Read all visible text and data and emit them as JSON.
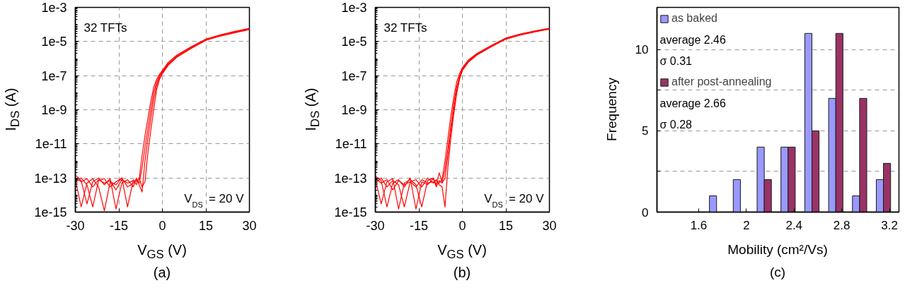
{
  "chart_data": [
    {
      "type": "line",
      "xlabel": "V$_{GS}$ (V)",
      "ylabel": "I$_{DS}$ (A)",
      "log": "y",
      "xlim": [
        -30,
        30
      ],
      "ylim": [
        1e-15,
        0.001
      ],
      "xticks": [
        -30,
        -15,
        0,
        15,
        30
      ],
      "yticks": [
        {
          "value": 1e-15,
          "label": "1e-15"
        },
        {
          "value": 1e-13,
          "label": "1e-13"
        },
        {
          "value": 1e-11,
          "label": "1e-11"
        },
        {
          "value": 1e-09,
          "label": "1e-9"
        },
        {
          "value": 1e-07,
          "label": "1e-7"
        },
        {
          "value": 1e-05,
          "label": "1e-5"
        },
        {
          "value": 0.001,
          "label": "1e-3"
        }
      ],
      "grid": true,
      "line_style": "solid",
      "marker": "none",
      "annotations": [
        "32 TFTs",
        "V$_{DS}$ = 20 V",
        "(a)"
      ],
      "x": [
        -30,
        -28,
        -26,
        -24,
        -22,
        -20,
        -18,
        -16,
        -14,
        -12,
        -10,
        -9,
        -8,
        -7,
        -6,
        -5,
        -4,
        -3,
        -2,
        -1,
        0,
        2,
        5,
        10,
        15,
        20,
        25,
        30
      ],
      "series": [
        {
          "color": "#ff0000",
          "values": [
            1e-13,
            6e-14,
            9e-14,
            3e-14,
            8e-14,
            5e-14,
            7e-14,
            2e-14,
            8e-14,
            5e-14,
            7e-14,
            6e-14,
            9e-14,
            2e-12,
            3e-11,
            3e-10,
            3e-09,
            2e-08,
            6e-08,
            1.2e-07,
            2e-07,
            6e-07,
            1.6e-06,
            5e-06,
            1.4e-05,
            2.5e-05,
            4e-05,
            6e-05
          ]
        },
        {
          "color": "#ff0000",
          "values": [
            8e-14,
            2e-15,
            5e-14,
            9e-14,
            3e-14,
            1.2e-15,
            6e-14,
            4e-14,
            1e-13,
            3e-14,
            5e-14,
            8e-14,
            5e-14,
            4e-13,
            6e-12,
            8e-11,
            1e-09,
            1e-08,
            4e-08,
            1e-07,
            1.7e-07,
            5e-07,
            1.4e-06,
            4.5e-06,
            1.3e-05,
            2.3e-05,
            3.7e-05,
            5.5e-05
          ]
        },
        {
          "color": "#ff0000",
          "values": [
            1.5e-13,
            7e-14,
            3e-15,
            6e-14,
            1e-13,
            4e-14,
            9e-14,
            1.5e-15,
            5e-14,
            8e-14,
            3e-14,
            1e-13,
            4e-14,
            1.5e-14,
            1e-12,
            2e-11,
            3e-10,
            4e-09,
            2.5e-08,
            8e-08,
            1.5e-07,
            4.5e-07,
            1.3e-06,
            4.2e-06,
            1.2e-05,
            2.2e-05,
            3.5e-05,
            5.2e-05
          ]
        },
        {
          "color": "#ff0000",
          "values": [
            6e-14,
            1e-13,
            4e-14,
            2e-15,
            7e-14,
            9e-14,
            3e-14,
            6e-14,
            1e-13,
            2e-15,
            8e-14,
            4e-14,
            1e-13,
            3e-14,
            6e-14,
            3e-12,
            6e-11,
            1e-09,
            1.5e-08,
            6e-08,
            1.3e-07,
            4e-07,
            1.2e-06,
            4e-06,
            1.2e-05,
            2.1e-05,
            3.3e-05,
            5e-05
          ]
        }
      ]
    },
    {
      "type": "line",
      "xlabel": "V$_{GS}$ (V)",
      "ylabel": "I$_{DS}$ (A)",
      "log": "y",
      "xlim": [
        -30,
        30
      ],
      "ylim": [
        1e-15,
        0.001
      ],
      "xticks": [
        -30,
        -15,
        0,
        15,
        30
      ],
      "yticks": [
        {
          "value": 1e-15,
          "label": "1e-15"
        },
        {
          "value": 1e-13,
          "label": "1e-13"
        },
        {
          "value": 1e-11,
          "label": "1e-11"
        },
        {
          "value": 1e-09,
          "label": "1e-9"
        },
        {
          "value": 1e-07,
          "label": "1e-7"
        },
        {
          "value": 1e-05,
          "label": "1e-5"
        },
        {
          "value": 0.001,
          "label": "1e-3"
        }
      ],
      "grid": true,
      "line_style": "solid",
      "marker": "none",
      "annotations": [
        "32 TFTs",
        "V$_{DS}$ = 20 V",
        "(b)"
      ],
      "x": [
        -30,
        -28,
        -26,
        -24,
        -22,
        -20,
        -18,
        -16,
        -14,
        -12,
        -10,
        -9,
        -8,
        -7,
        -6,
        -5,
        -4,
        -3,
        -2,
        -1,
        0,
        2,
        5,
        10,
        15,
        20,
        25,
        30
      ],
      "series": [
        {
          "color": "#ff0000",
          "values": [
            1e-13,
            5e-14,
            8e-14,
            2e-14,
            7e-14,
            4e-14,
            6e-14,
            3e-14,
            8e-14,
            5e-14,
            6e-14,
            7e-14,
            5e-14,
            8e-14,
            1e-12,
            2e-11,
            4e-10,
            5e-09,
            4e-08,
            1.3e-07,
            3e-07,
            8e-07,
            2e-06,
            6e-06,
            1.6e-05,
            2.8e-05,
            4.2e-05,
            6e-05
          ]
        },
        {
          "color": "#ff0000",
          "values": [
            8e-14,
            3e-15,
            6e-14,
            9e-14,
            1.5e-15,
            5e-14,
            8e-14,
            4e-14,
            2e-15,
            7e-14,
            1e-13,
            4e-14,
            2e-13,
            6e-14,
            3e-13,
            5e-12,
            1e-10,
            2e-09,
            2e-08,
            9e-08,
            2.5e-07,
            7e-07,
            1.8e-06,
            5.5e-06,
            1.5e-05,
            2.6e-05,
            4e-05,
            5.7e-05
          ]
        },
        {
          "color": "#ff0000",
          "values": [
            1.3e-13,
            7e-14,
            2e-15,
            5e-14,
            8e-14,
            3e-14,
            1e-13,
            1.5e-15,
            6e-14,
            4e-14,
            9e-14,
            3e-14,
            7e-14,
            5e-14,
            1e-13,
            2e-12,
            5e-11,
            1e-09,
            1.2e-08,
            7e-08,
            2.2e-07,
            6.5e-07,
            1.7e-06,
            5.2e-06,
            1.4e-05,
            2.5e-05,
            3.8e-05,
            5.5e-05
          ]
        },
        {
          "color": "#ff0000",
          "values": [
            5e-14,
            1e-13,
            3e-14,
            7e-14,
            4e-14,
            2e-15,
            6e-14,
            8e-14,
            3e-14,
            1e-13,
            5e-14,
            8e-14,
            4e-14,
            3e-14,
            2e-15,
            4e-13,
            2e-11,
            5e-10,
            8e-09,
            6e-08,
            2e-07,
            6e-07,
            1.6e-06,
            5e-06,
            1.4e-05,
            2.4e-05,
            3.7e-05,
            5.3e-05
          ]
        }
      ]
    },
    {
      "type": "bar",
      "xlabel": "Mobility (cm²/Vs)",
      "ylabel": "Frequency",
      "xlim": [
        1.25,
        3.28
      ],
      "ylim": [
        0,
        12.6
      ],
      "xticks": [
        1.6,
        2,
        2.4,
        2.8,
        3.2
      ],
      "yticks": [
        0,
        {
          "value": 2.5,
          "label": null
        },
        5,
        {
          "value": 7.5,
          "label": null
        },
        10
      ],
      "grid": "y",
      "legend": "top left",
      "annotations": [
        "average 2.46",
        "σ 0.31",
        "average 2.66",
        "σ 0.28",
        "(c)"
      ],
      "series": [
        {
          "name": "as baked",
          "color": "#9999ff",
          "x": [
            1.72,
            1.92,
            2.12,
            2.32,
            2.52,
            2.72,
            2.92,
            3.12
          ],
          "values": [
            1,
            2,
            4,
            4,
            11,
            7,
            1,
            2
          ]
        },
        {
          "name": "after post-annealing",
          "color": "#993366",
          "x": [
            2.18,
            2.38,
            2.58,
            2.78,
            2.98,
            3.18
          ],
          "values": [
            2,
            4,
            5,
            11,
            7,
            3
          ]
        }
      ]
    }
  ]
}
